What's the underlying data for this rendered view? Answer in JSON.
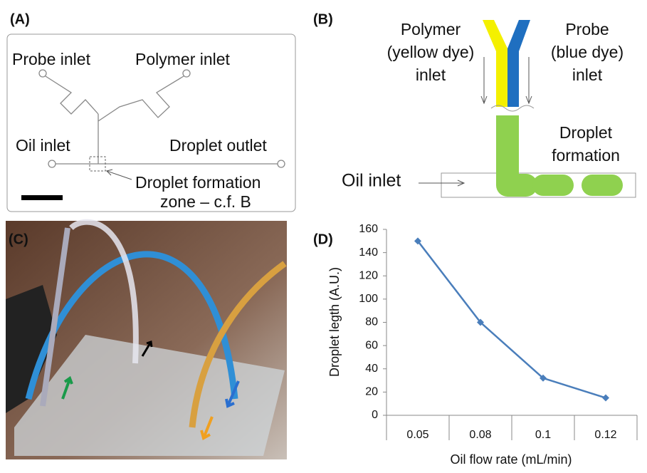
{
  "panels": {
    "a": {
      "label": "(A)",
      "probe_inlet": "Probe inlet",
      "polymer_inlet": "Polymer inlet",
      "oil_inlet": "Oil inlet",
      "droplet_outlet": "Droplet outlet",
      "formation_line1": "Droplet formation",
      "formation_line2": "zone – c.f. B"
    },
    "b": {
      "label": "(B)",
      "polymer_line1": "Polymer",
      "polymer_line2": "(yellow dye)",
      "polymer_line3": "inlet",
      "probe_line1": "Probe",
      "probe_line2": "(blue dye)",
      "probe_line3": "inlet",
      "droplet_line1": "Droplet",
      "droplet_line2": "formation",
      "oil_inlet": "Oil inlet"
    },
    "c": {
      "label": "(C)"
    },
    "d": {
      "label": "(D)"
    }
  },
  "chart_data": {
    "type": "line",
    "x_label": "Oil flow rate (mL/min)",
    "y_label": "Droplet legth (A.U.)",
    "categories": [
      "0.05",
      "0.08",
      "0.1",
      "0.12"
    ],
    "values": [
      150,
      80,
      32,
      15
    ],
    "color": "#4a7ebb",
    "ylim": [
      0,
      160
    ],
    "yticks": [
      0,
      20,
      40,
      60,
      80,
      100,
      120,
      140,
      160
    ],
    "grid": false
  }
}
